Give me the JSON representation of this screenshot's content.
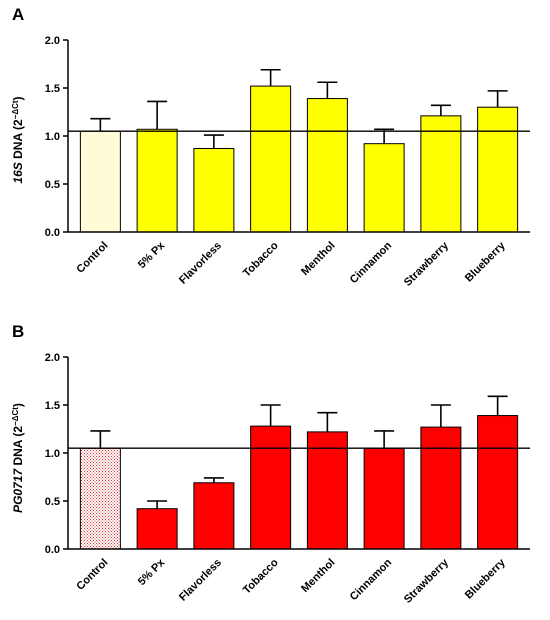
{
  "chart_data": [
    {
      "type": "bar",
      "panel_label": "A",
      "ylabel_gene": "16S",
      "ylabel_rest": " DNA (2",
      "ylabel_exp": "−ΔCt",
      "ylabel_close": ")",
      "categories": [
        "Control",
        "5% Px",
        "Flavorless",
        "Tobacco",
        "Menthol",
        "Cinnamon",
        "Strawberry",
        "Blueberry"
      ],
      "values": [
        1.05,
        1.07,
        0.87,
        1.52,
        1.39,
        0.92,
        1.21,
        1.3
      ],
      "error": [
        0.13,
        0.29,
        0.14,
        0.17,
        0.17,
        0.15,
        0.11,
        0.17
      ],
      "ylim": [
        0,
        2.0
      ],
      "yticks": [
        0.0,
        0.5,
        1.0,
        1.5,
        2.0
      ],
      "ytick_labels": [
        "0.0",
        "0.5",
        "1.0",
        "1.5",
        "2.0"
      ],
      "reference_line": 1.05,
      "bar_colors": [
        "#fffbd6",
        "#ffff00",
        "#ffff00",
        "#ffff00",
        "#ffff00",
        "#ffff00",
        "#ffff00",
        "#ffff00"
      ],
      "control_pattern": "light-fill"
    },
    {
      "type": "bar",
      "panel_label": "B",
      "ylabel_gene": "PG0717",
      "ylabel_rest": " DNA (2",
      "ylabel_exp": "−ΔCt",
      "ylabel_close": ")",
      "categories": [
        "Control",
        "5% Px",
        "Flavorless",
        "Tobacco",
        "Menthol",
        "Cinnamon",
        "Strawberry",
        "Blueberry"
      ],
      "values": [
        1.05,
        0.42,
        0.69,
        1.28,
        1.22,
        1.05,
        1.27,
        1.39
      ],
      "error": [
        0.18,
        0.08,
        0.05,
        0.22,
        0.2,
        0.18,
        0.23,
        0.2
      ],
      "ylim": [
        0,
        2.0
      ],
      "yticks": [
        0.0,
        0.5,
        1.0,
        1.5,
        2.0
      ],
      "ytick_labels": [
        "0.0",
        "0.5",
        "1.0",
        "1.5",
        "2.0"
      ],
      "reference_line": 1.05,
      "bar_colors": [
        "#ffffff",
        "#ff0000",
        "#ff0000",
        "#ff0000",
        "#ff0000",
        "#ff0000",
        "#ff0000",
        "#ff0000"
      ],
      "control_pattern": "red-dots"
    }
  ]
}
